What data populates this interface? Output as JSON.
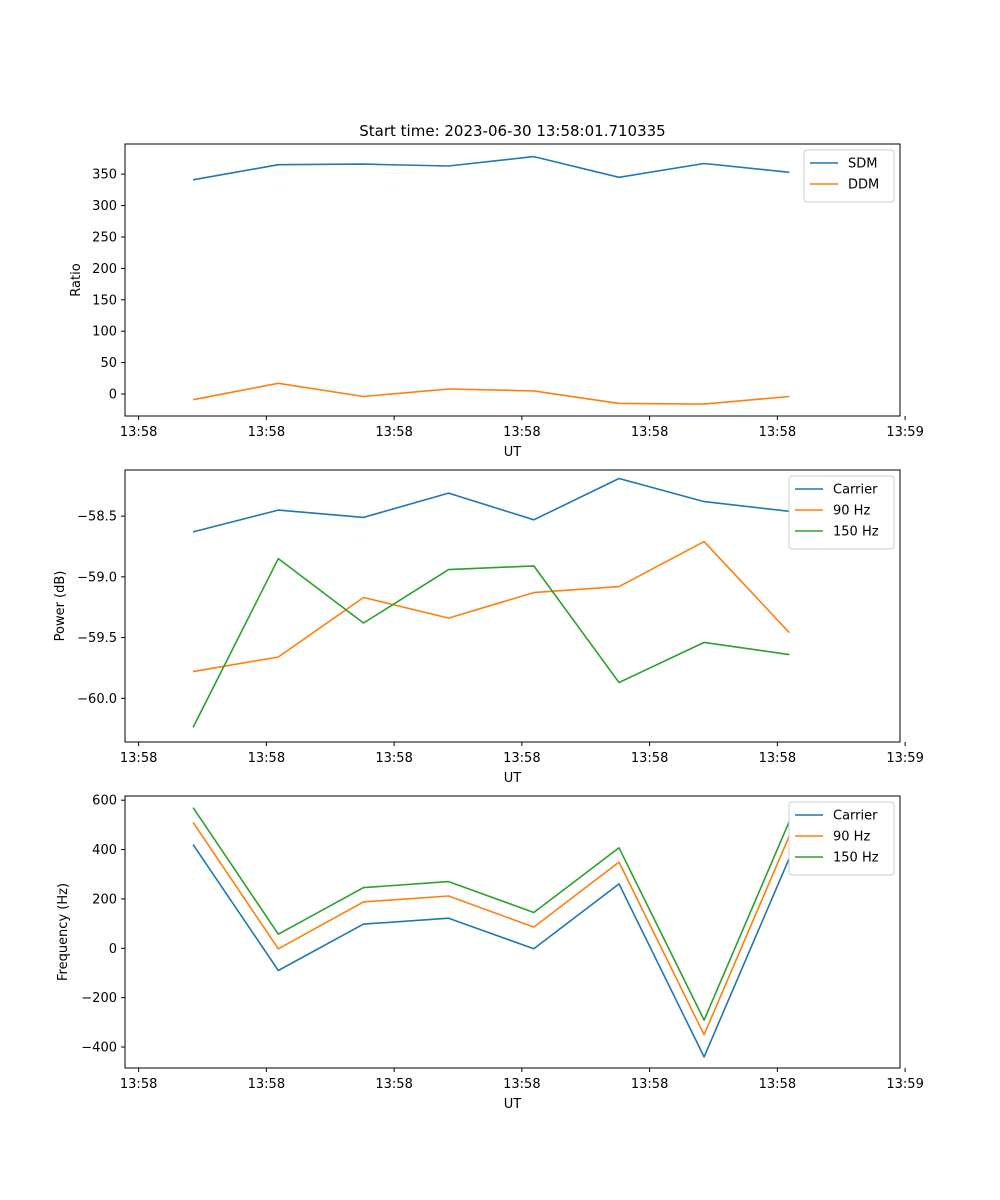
{
  "chart_data": [
    {
      "type": "line",
      "title": "Start time: 2023-06-30 13:58:01.710335",
      "xlabel": "UT",
      "ylabel": "Ratio",
      "x": [
        1,
        2,
        3,
        4,
        5,
        6,
        7,
        8
      ],
      "xlim": [
        0.2,
        9.3
      ],
      "ylim": [
        -35,
        398
      ],
      "xticks": [
        0.36,
        1.86,
        3.36,
        4.86,
        6.36,
        7.86,
        9.36
      ],
      "xtick_labels": [
        "13:58",
        "13:58",
        "13:58",
        "13:58",
        "13:58",
        "13:58",
        "13:58"
      ],
      "xtick_extra": {
        "value": 9.36,
        "label": "13:59"
      },
      "yticks": [
        0,
        50,
        100,
        150,
        200,
        250,
        300,
        350
      ],
      "ytick_labels": [
        "0",
        "50",
        "100",
        "150",
        "200",
        "250",
        "300",
        "350"
      ],
      "legend": "top-right",
      "grid": false,
      "series": [
        {
          "name": "SDM",
          "color": "#1f77b4",
          "values": [
            341,
            365,
            366,
            363,
            378,
            345,
            367,
            353
          ]
        },
        {
          "name": "DDM",
          "color": "#ff7f0e",
          "values": [
            -9,
            17,
            -4,
            8,
            5,
            -15,
            -16,
            -4
          ]
        }
      ]
    },
    {
      "type": "line",
      "xlabel": "UT",
      "ylabel": "Power (dB)",
      "x": [
        1,
        2,
        3,
        4,
        5,
        6,
        7,
        8
      ],
      "xlim": [
        0.2,
        9.3
      ],
      "ylim": [
        -60.36,
        -58.12
      ],
      "xticks": [
        0.36,
        1.86,
        3.36,
        4.86,
        6.36,
        7.86,
        9.36
      ],
      "xtick_labels": [
        "13:58",
        "13:58",
        "13:58",
        "13:58",
        "13:58",
        "13:58",
        "13:59"
      ],
      "yticks": [
        -60.0,
        -59.5,
        -59.0,
        -58.5
      ],
      "ytick_labels": [
        "−60.0",
        "−59.5",
        "−59.0",
        "−58.5"
      ],
      "legend": "top-right",
      "grid": false,
      "series": [
        {
          "name": "Carrier",
          "color": "#1f77b4",
          "values": [
            -58.63,
            -58.45,
            -58.51,
            -58.31,
            -58.53,
            -58.19,
            -58.38,
            -58.46
          ]
        },
        {
          "name": "90 Hz",
          "color": "#ff7f0e",
          "values": [
            -59.78,
            -59.66,
            -59.17,
            -59.34,
            -59.13,
            -59.08,
            -58.71,
            -59.46
          ]
        },
        {
          "name": "150 Hz",
          "color": "#2ca02c",
          "values": [
            -60.24,
            -58.85,
            -59.38,
            -58.94,
            -58.91,
            -59.87,
            -59.54,
            -59.64
          ]
        }
      ]
    },
    {
      "type": "line",
      "xlabel": "UT",
      "ylabel": "Frequency (Hz)",
      "x": [
        1,
        2,
        3,
        4,
        5,
        6,
        7,
        8
      ],
      "xlim": [
        0.2,
        9.3
      ],
      "ylim": [
        -485,
        617
      ],
      "xticks": [
        0.36,
        1.86,
        3.36,
        4.86,
        6.36,
        7.86,
        9.36
      ],
      "xtick_labels": [
        "13:58",
        "13:58",
        "13:58",
        "13:58",
        "13:58",
        "13:58",
        "13:59"
      ],
      "yticks": [
        -400,
        -200,
        0,
        200,
        400,
        600
      ],
      "ytick_labels": [
        "−400",
        "−200",
        "0",
        "200",
        "400",
        "600"
      ],
      "legend": "top-right",
      "grid": false,
      "series": [
        {
          "name": "Carrier",
          "color": "#1f77b4",
          "values": [
            420,
            -90,
            98,
            122,
            -2,
            261,
            -440,
            365
          ]
        },
        {
          "name": "90 Hz",
          "color": "#ff7f0e",
          "values": [
            510,
            -2,
            188,
            212,
            86,
            349,
            -350,
            455
          ]
        },
        {
          "name": "150 Hz",
          "color": "#2ca02c",
          "values": [
            570,
            57,
            246,
            270,
            145,
            407,
            -291,
            514
          ]
        }
      ]
    }
  ]
}
